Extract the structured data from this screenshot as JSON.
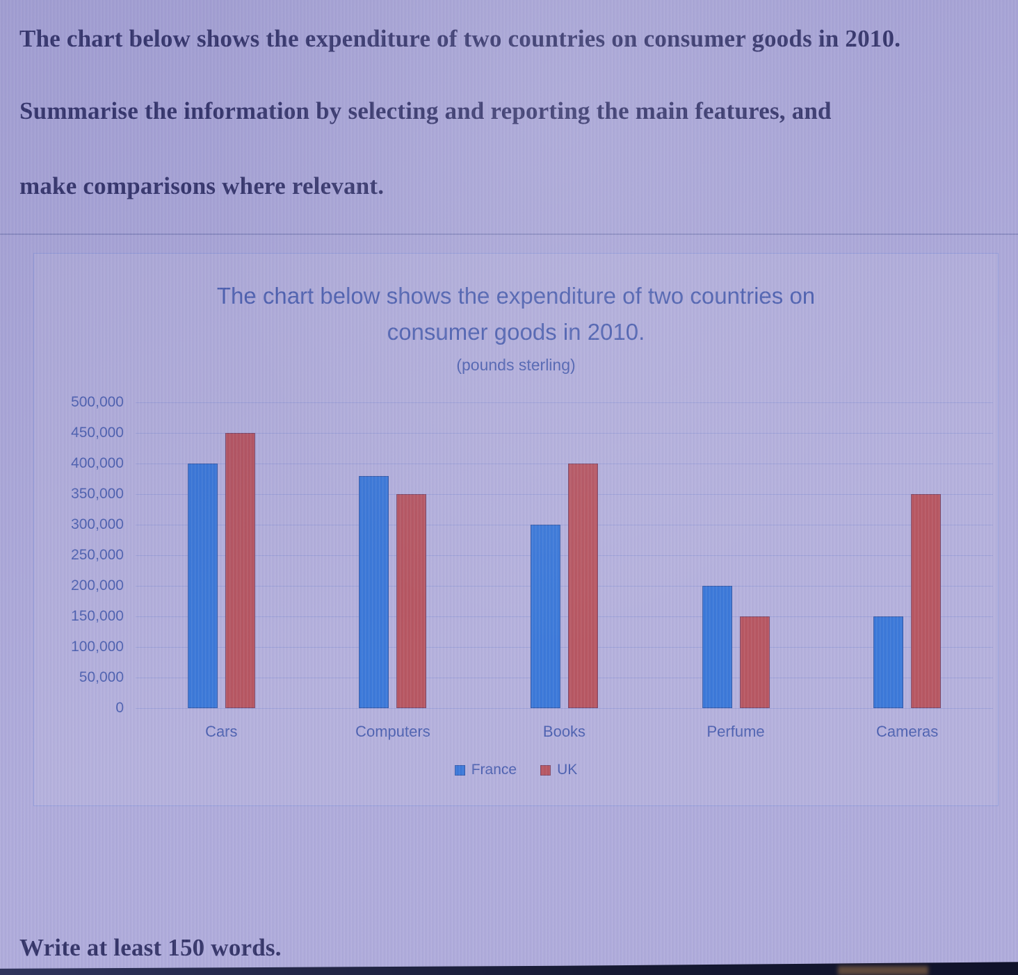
{
  "page": {
    "instruction_line1": "The chart below shows the expenditure of two countries on consumer goods in 2010.",
    "instruction_line2": "Summarise the information by selecting and reporting the main features, and",
    "instruction_line3": "make comparisons where relevant.",
    "footer_note": "Write at least 150 words."
  },
  "chart_data": {
    "type": "bar",
    "title": "The chart below shows the expenditure of two countries on consumer goods in 2010.",
    "subtitle": "(pounds sterling)",
    "categories": [
      "Cars",
      "Computers",
      "Books",
      "Perfume",
      "Cameras"
    ],
    "series": [
      {
        "name": "France",
        "color": "#2d6fd6",
        "values": [
          400000,
          380000,
          300000,
          200000,
          150000
        ]
      },
      {
        "name": "UK",
        "color": "#b24a56",
        "values": [
          450000,
          350000,
          400000,
          150000,
          350000
        ]
      }
    ],
    "xlabel": "",
    "ylabel": "",
    "ylim": [
      0,
      500000
    ],
    "ytick_step": 50000,
    "yticks": [
      "500,000",
      "450,000",
      "400,000",
      "350,000",
      "300,000",
      "250,000",
      "200,000",
      "150,000",
      "100,000",
      "50,000",
      "0"
    ],
    "grid": true,
    "legend_position": "bottom-center"
  },
  "colors": {
    "background": "#a9a5d8",
    "instruction_text": "#26265e",
    "chart_text": "#4156ab",
    "france_bar": "#2d6fd6",
    "uk_bar": "#b24a56"
  }
}
